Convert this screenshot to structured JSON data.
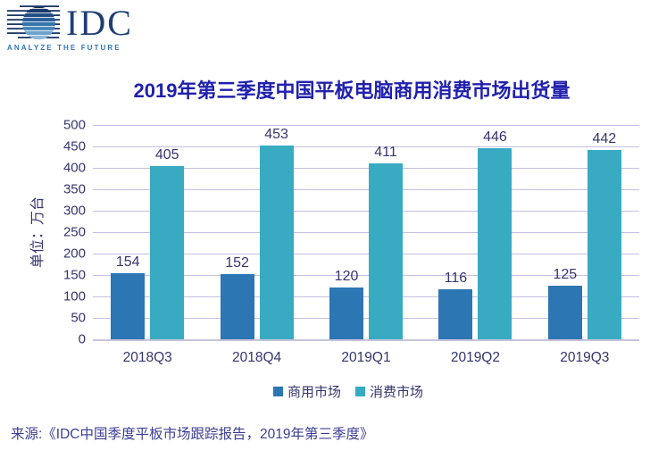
{
  "logo": {
    "brand": "IDC",
    "tagline": "ANALYZE THE FUTURE"
  },
  "title": "2019年第三季度中国平板电脑商用消费市场出货量",
  "chart_data": {
    "type": "bar",
    "title": "2019年第三季度中国平板电脑商用消费市场出货量",
    "categories": [
      "2018Q3",
      "2018Q4",
      "2019Q1",
      "2019Q2",
      "2019Q3"
    ],
    "series": [
      {
        "name": "商用市场",
        "color": "#2B76B3",
        "values": [
          154,
          152,
          120,
          116,
          125
        ]
      },
      {
        "name": "消费市场",
        "color": "#38ABC3",
        "values": [
          405,
          453,
          411,
          446,
          442
        ]
      }
    ],
    "xlabel": "",
    "ylabel": "单位：万台",
    "ylim": [
      0,
      500
    ],
    "ytick_step": 50,
    "grid": true,
    "legend_position": "bottom"
  },
  "source": "来源:《IDC中国季度平板市场跟踪报告，2019年第三季度》",
  "colors": {
    "title": "#2020AE",
    "label": "#35356F",
    "gridline": "#C3C0E1",
    "axis_line": "#C7C4DA",
    "source": "#3D3D95",
    "logo_navy": "#1E3F74",
    "logo_tagline": "#2E75B8",
    "series_commercial": "#2B76B3",
    "series_consumer": "#38ABC3"
  }
}
